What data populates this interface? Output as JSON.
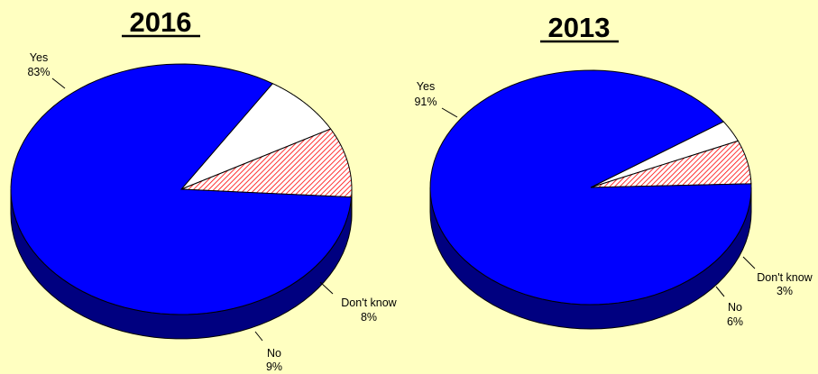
{
  "colors": {
    "background": "#FFFFC1",
    "yes": "#0000FF",
    "yes_side": "#000080",
    "no": "#FF0000",
    "no_side": "#800000",
    "dont_know": "#FFFFFF",
    "dont_know_side": "#808080"
  },
  "chart_data": [
    {
      "type": "pie",
      "title": "2016",
      "style": "3d-tilted",
      "categories": [
        "Yes",
        "No",
        "Don't know"
      ],
      "values": [
        83,
        9,
        8
      ],
      "labels": [
        "83%",
        "9%",
        "8%"
      ],
      "slice_patterns": [
        "solid",
        "diagonal-hatch",
        "solid"
      ]
    },
    {
      "type": "pie",
      "title": "2013",
      "style": "3d-tilted",
      "categories": [
        "Yes",
        "No",
        "Don't know"
      ],
      "values": [
        91,
        6,
        3
      ],
      "labels": [
        "91%",
        "6%",
        "3%"
      ],
      "slice_patterns": [
        "solid",
        "diagonal-hatch",
        "solid"
      ]
    }
  ]
}
